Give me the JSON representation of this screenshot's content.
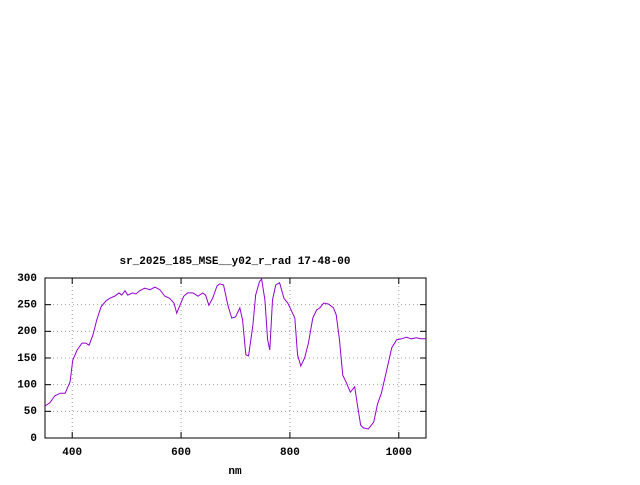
{
  "chart_data": {
    "type": "line",
    "title": "sr_2025_185_MSE__y02_r_rad 17-48-00",
    "x_label": "nm",
    "xlim": [
      350,
      1050
    ],
    "xticks": [
      400,
      600,
      800,
      1000
    ],
    "ylim": [
      0,
      300
    ],
    "yticks": [
      0,
      50,
      100,
      150,
      200,
      250,
      300
    ],
    "grid": true,
    "series": [
      {
        "color": "#9400d3",
        "x": [
          350,
          359,
          368,
          378,
          387,
          396,
          401,
          409,
          418,
          425,
          431,
          438,
          445,
          453,
          462,
          469,
          478,
          486,
          491,
          497,
          502,
          511,
          517,
          524,
          533,
          543,
          552,
          561,
          570,
          579,
          587,
          592,
          598,
          605,
          612,
          622,
          631,
          640,
          645,
          651,
          658,
          666,
          671,
          678,
          686,
          693,
          700,
          708,
          713,
          719,
          724,
          732,
          737,
          744,
          748,
          754,
          759,
          763,
          768,
          774,
          781,
          789,
          796,
          803,
          809,
          814,
          820,
          827,
          834,
          842,
          849,
          855,
          862,
          871,
          880,
          885,
          891,
          897,
          904,
          911,
          919,
          924,
          930,
          935,
          944,
          954,
          961,
          968,
          978,
          987,
          996,
          1005,
          1014,
          1023,
          1032,
          1041,
          1050
        ],
        "values": [
          60,
          66,
          79,
          84,
          84,
          105,
          146,
          165,
          178,
          178,
          174,
          193,
          221,
          246,
          257,
          262,
          266,
          272,
          268,
          276,
          268,
          272,
          270,
          276,
          281,
          278,
          283,
          278,
          266,
          262,
          253,
          234,
          249,
          266,
          272,
          272,
          266,
          272,
          268,
          249,
          262,
          285,
          289,
          287,
          249,
          225,
          227,
          244,
          221,
          156,
          154,
          212,
          268,
          293,
          298,
          259,
          184,
          165,
          259,
          287,
          291,
          262,
          253,
          238,
          225,
          156,
          135,
          150,
          178,
          225,
          240,
          244,
          253,
          251,
          244,
          231,
          184,
          118,
          103,
          86,
          96,
          62,
          24,
          19,
          17,
          30,
          64,
          84,
          128,
          169,
          184,
          186,
          189,
          186,
          188,
          186,
          186
        ]
      }
    ]
  }
}
